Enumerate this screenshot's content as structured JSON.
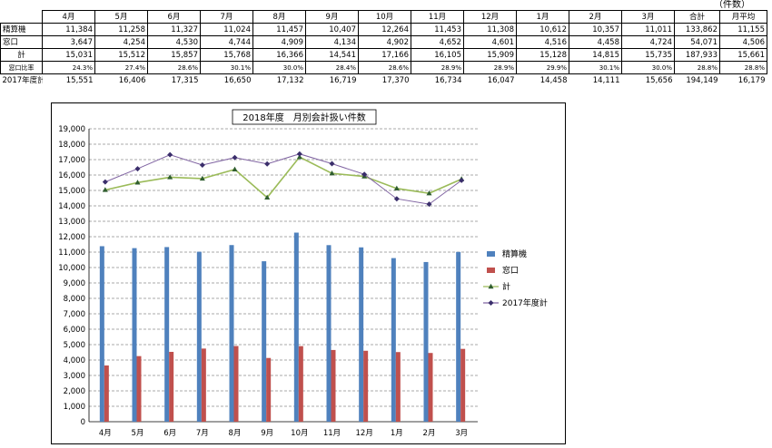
{
  "unit_label": "（件数）",
  "table": {
    "headers": [
      "",
      "4月",
      "5月",
      "6月",
      "7月",
      "8月",
      "9月",
      "10月",
      "11月",
      "12月",
      "1月",
      "2月",
      "3月",
      "合計",
      "月平均"
    ],
    "rows": [
      {
        "label": "精算機",
        "values": [
          "11,384",
          "11,258",
          "11,327",
          "11,024",
          "11,457",
          "10,407",
          "12,264",
          "11,453",
          "11,308",
          "10,612",
          "10,357",
          "11,011",
          "133,862",
          "11,155"
        ]
      },
      {
        "label": "窓口",
        "values": [
          "3,647",
          "4,254",
          "4,530",
          "4,744",
          "4,909",
          "4,134",
          "4,902",
          "4,652",
          "4,601",
          "4,516",
          "4,458",
          "4,724",
          "54,071",
          "4,506"
        ]
      },
      {
        "label": "計",
        "values": [
          "15,031",
          "15,512",
          "15,857",
          "15,768",
          "16,366",
          "14,541",
          "17,166",
          "16,105",
          "15,909",
          "15,128",
          "14,815",
          "15,735",
          "187,933",
          "15,661"
        ]
      },
      {
        "label": "窓口比率",
        "values": [
          "24.3%",
          "27.4%",
          "28.6%",
          "30.1%",
          "30.0%",
          "28.4%",
          "28.6%",
          "28.9%",
          "28.9%",
          "29.9%",
          "30.1%",
          "30.0%",
          "28.8%",
          "28.8%"
        ]
      },
      {
        "label": "2017年度計",
        "values": [
          "15,551",
          "16,406",
          "17,315",
          "16,650",
          "17,132",
          "16,719",
          "17,370",
          "16,734",
          "16,047",
          "14,458",
          "14,111",
          "15,656",
          "194,149",
          "16,179"
        ]
      }
    ]
  },
  "chart_data": {
    "type": "bar",
    "title": "2018年度　月別会計扱い件数",
    "categories": [
      "4月",
      "5月",
      "6月",
      "7月",
      "8月",
      "9月",
      "10月",
      "11月",
      "12月",
      "1月",
      "2月",
      "3月"
    ],
    "ylim": [
      0,
      19000
    ],
    "yticks": [
      "0",
      "1,000",
      "2,000",
      "3,000",
      "4,000",
      "5,000",
      "6,000",
      "7,000",
      "8,000",
      "9,000",
      "10,000",
      "11,000",
      "12,000",
      "13,000",
      "14,000",
      "15,000",
      "16,000",
      "17,000",
      "18,000",
      "19,000"
    ],
    "grid": true,
    "legend_position": "right",
    "series": [
      {
        "name": "精算機",
        "kind": "bar",
        "color": "#4F81BD",
        "values": [
          11384,
          11258,
          11327,
          11024,
          11457,
          10407,
          12264,
          11453,
          11308,
          10612,
          10357,
          11011
        ]
      },
      {
        "name": "窓口",
        "kind": "bar",
        "color": "#C0504D",
        "values": [
          3647,
          4254,
          4530,
          4744,
          4909,
          4134,
          4902,
          4652,
          4601,
          4516,
          4458,
          4724
        ]
      },
      {
        "name": "計",
        "kind": "line",
        "marker": "triangle",
        "color": "#9BBB59",
        "values": [
          15031,
          15512,
          15857,
          15768,
          16366,
          14541,
          17166,
          16105,
          15909,
          15128,
          14815,
          15735
        ]
      },
      {
        "name": "2017年度計",
        "kind": "line",
        "marker": "diamond",
        "color": "#8064A2",
        "values": [
          15551,
          16406,
          17315,
          16650,
          17132,
          16719,
          17370,
          16734,
          16047,
          14458,
          14111,
          15656
        ]
      }
    ]
  }
}
